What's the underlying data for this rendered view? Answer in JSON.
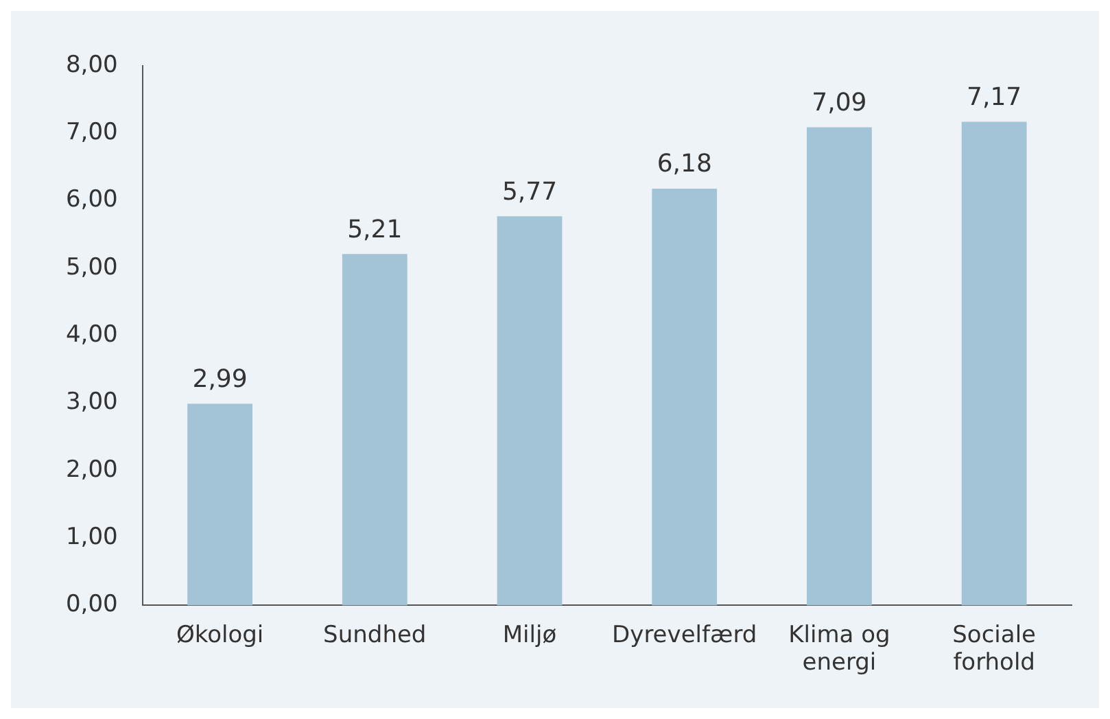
{
  "chart_data": {
    "type": "bar",
    "categories": [
      "Økologi",
      "Sundhed",
      "Miljø",
      "Dyrevelfærd",
      "Klima og energi",
      "Sociale forhold"
    ],
    "values": [
      2.99,
      5.21,
      5.77,
      6.18,
      7.09,
      7.17
    ],
    "value_labels": [
      "2,99",
      "5,21",
      "5,77",
      "6,18",
      "7,09",
      "7,17"
    ],
    "color": "#a3c4d7",
    "ylim": [
      0,
      8
    ],
    "yticks": [
      {
        "value": 0,
        "label": "0,00"
      },
      {
        "value": 1,
        "label": "1,00"
      },
      {
        "value": 2,
        "label": "2,00"
      },
      {
        "value": 3,
        "label": "3,00"
      },
      {
        "value": 4,
        "label": "4,00"
      },
      {
        "value": 5,
        "label": "5,00"
      },
      {
        "value": 6,
        "label": "6,00"
      },
      {
        "value": 7,
        "label": "7,00"
      },
      {
        "value": 8,
        "label": "8,00"
      }
    ],
    "grid": false,
    "legend": false
  }
}
